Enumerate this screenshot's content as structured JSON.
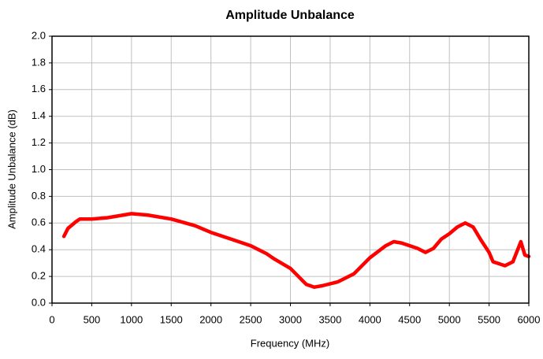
{
  "chart_data": {
    "type": "line",
    "title": "Amplitude Unbalance",
    "x_label": "Frequency (MHz)",
    "y_label": "Amplitude Unbalance (dB)",
    "x": [
      150,
      200,
      300,
      350,
      500,
      700,
      900,
      1000,
      1200,
      1500,
      1800,
      2000,
      2250,
      2500,
      2700,
      2800,
      3000,
      3100,
      3200,
      3300,
      3400,
      3600,
      3800,
      4000,
      4200,
      4300,
      4400,
      4500,
      4600,
      4700,
      4800,
      4900,
      5000,
      5100,
      5200,
      5300,
      5400,
      5500,
      5550,
      5700,
      5800,
      5900,
      5950,
      6000
    ],
    "values": [
      0.5,
      0.56,
      0.61,
      0.63,
      0.63,
      0.64,
      0.66,
      0.67,
      0.66,
      0.63,
      0.58,
      0.53,
      0.48,
      0.43,
      0.37,
      0.33,
      0.26,
      0.2,
      0.14,
      0.12,
      0.13,
      0.16,
      0.22,
      0.34,
      0.43,
      0.46,
      0.45,
      0.43,
      0.41,
      0.38,
      0.41,
      0.48,
      0.52,
      0.57,
      0.6,
      0.57,
      0.47,
      0.38,
      0.31,
      0.28,
      0.31,
      0.46,
      0.36,
      0.35
    ],
    "color": "#ff0000",
    "xlim": [
      0,
      6000
    ],
    "xticks": [
      0,
      500,
      1000,
      1500,
      2000,
      2500,
      3000,
      3500,
      4000,
      4500,
      5000,
      5500,
      6000
    ],
    "ylim": [
      0,
      2
    ],
    "yticks": [
      {
        "value": 0,
        "label": "0.0"
      },
      0.2,
      0.4,
      0.6,
      0.8,
      {
        "value": 1,
        "label": "1.0"
      },
      1.2,
      1.4,
      1.6,
      1.8,
      {
        "value": 2,
        "label": "2.0"
      }
    ],
    "grid": true
  }
}
